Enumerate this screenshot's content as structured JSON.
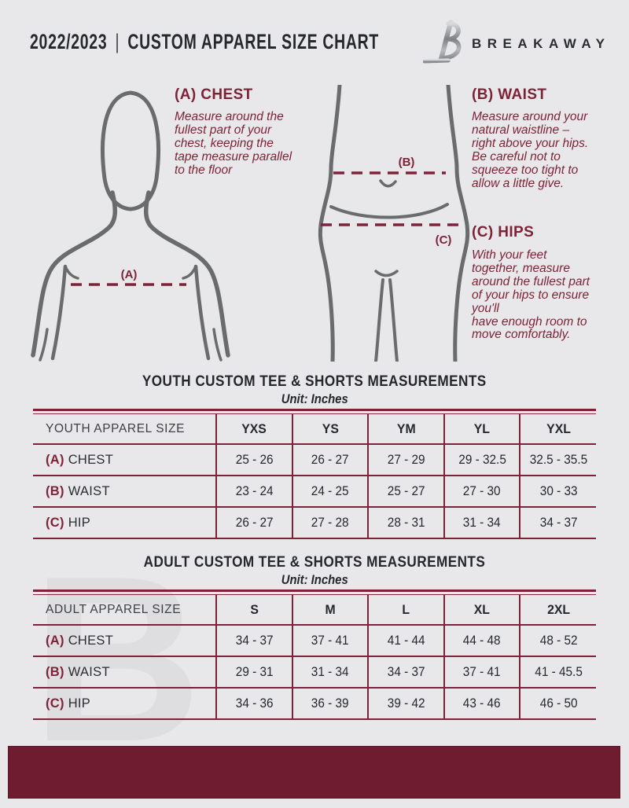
{
  "header": {
    "title_year": "2022/2023",
    "title_separator": "|",
    "title_main": "CUSTOM APPAREL SIZE CHART",
    "brand_name": "BREAKAWAY",
    "brand_icon": "breakaway-b-logo"
  },
  "measure_guide": {
    "chest": {
      "heading": "(A) CHEST",
      "marker": "(A)",
      "description": "Measure around the\nfullest part of your\nchest, keeping the\ntape measure parallel\nto the floor"
    },
    "waist": {
      "heading": "(B) WAIST",
      "marker": "(B)",
      "description": "Measure around your\nnatural waistline –\nright above your hips.\nBe careful not to\nsqueeze too tight to\nallow a little give."
    },
    "hips": {
      "heading": "(C) HIPS",
      "marker": "(C)",
      "description": "With your feet\ntogether, measure\naround the fullest part\nof your hips to ensure\nyou'll\nhave enough room to\nmove comfortably."
    }
  },
  "youth_table": {
    "title": "YOUTH CUSTOM TEE & SHORTS MEASUREMENTS",
    "subtitle": "Unit: Inches",
    "header": [
      "YOUTH APPAREL SIZE",
      "YXS",
      "YS",
      "YM",
      "YL",
      "YXL"
    ],
    "rows": [
      {
        "marker": "(A)",
        "label": "CHEST",
        "values": [
          "25 - 26",
          "26 - 27",
          "27 - 29",
          "29 - 32.5",
          "32.5 - 35.5"
        ]
      },
      {
        "marker": "(B)",
        "label": "WAIST",
        "values": [
          "23 - 24",
          "24 - 25",
          "25 - 27",
          "27 - 30",
          "30 - 33"
        ]
      },
      {
        "marker": "(C)",
        "label": "HIP",
        "values": [
          "26 - 27",
          "27 - 28",
          "28 - 31",
          "31 - 34",
          "34 - 37"
        ]
      }
    ]
  },
  "adult_table": {
    "title": "ADULT CUSTOM TEE & SHORTS MEASUREMENTS",
    "subtitle": "Unit: Inches",
    "header": [
      "ADULT APPAREL SIZE",
      "S",
      "M",
      "L",
      "XL",
      "2XL"
    ],
    "rows": [
      {
        "marker": "(A)",
        "label": "CHEST",
        "values": [
          "34 - 37",
          "37 - 41",
          "41 - 44",
          "44 - 48",
          "48 - 52"
        ]
      },
      {
        "marker": "(B)",
        "label": "WAIST",
        "values": [
          "29 - 31",
          "31 - 34",
          "34 - 37",
          "37 - 41",
          "41 - 45.5"
        ]
      },
      {
        "marker": "(C)",
        "label": "HIP",
        "values": [
          "34 - 36",
          "36 - 39",
          "39 - 42",
          "43 - 46",
          "46 - 50"
        ]
      }
    ]
  },
  "watermark": {
    "letter": "B"
  },
  "colors": {
    "background": "#e8e8ea",
    "accent_maroon": "#7e2237",
    "footer_maroon": "#6f1c30",
    "figure_gray": "#6a6b6d",
    "text_dark": "#26282c"
  }
}
